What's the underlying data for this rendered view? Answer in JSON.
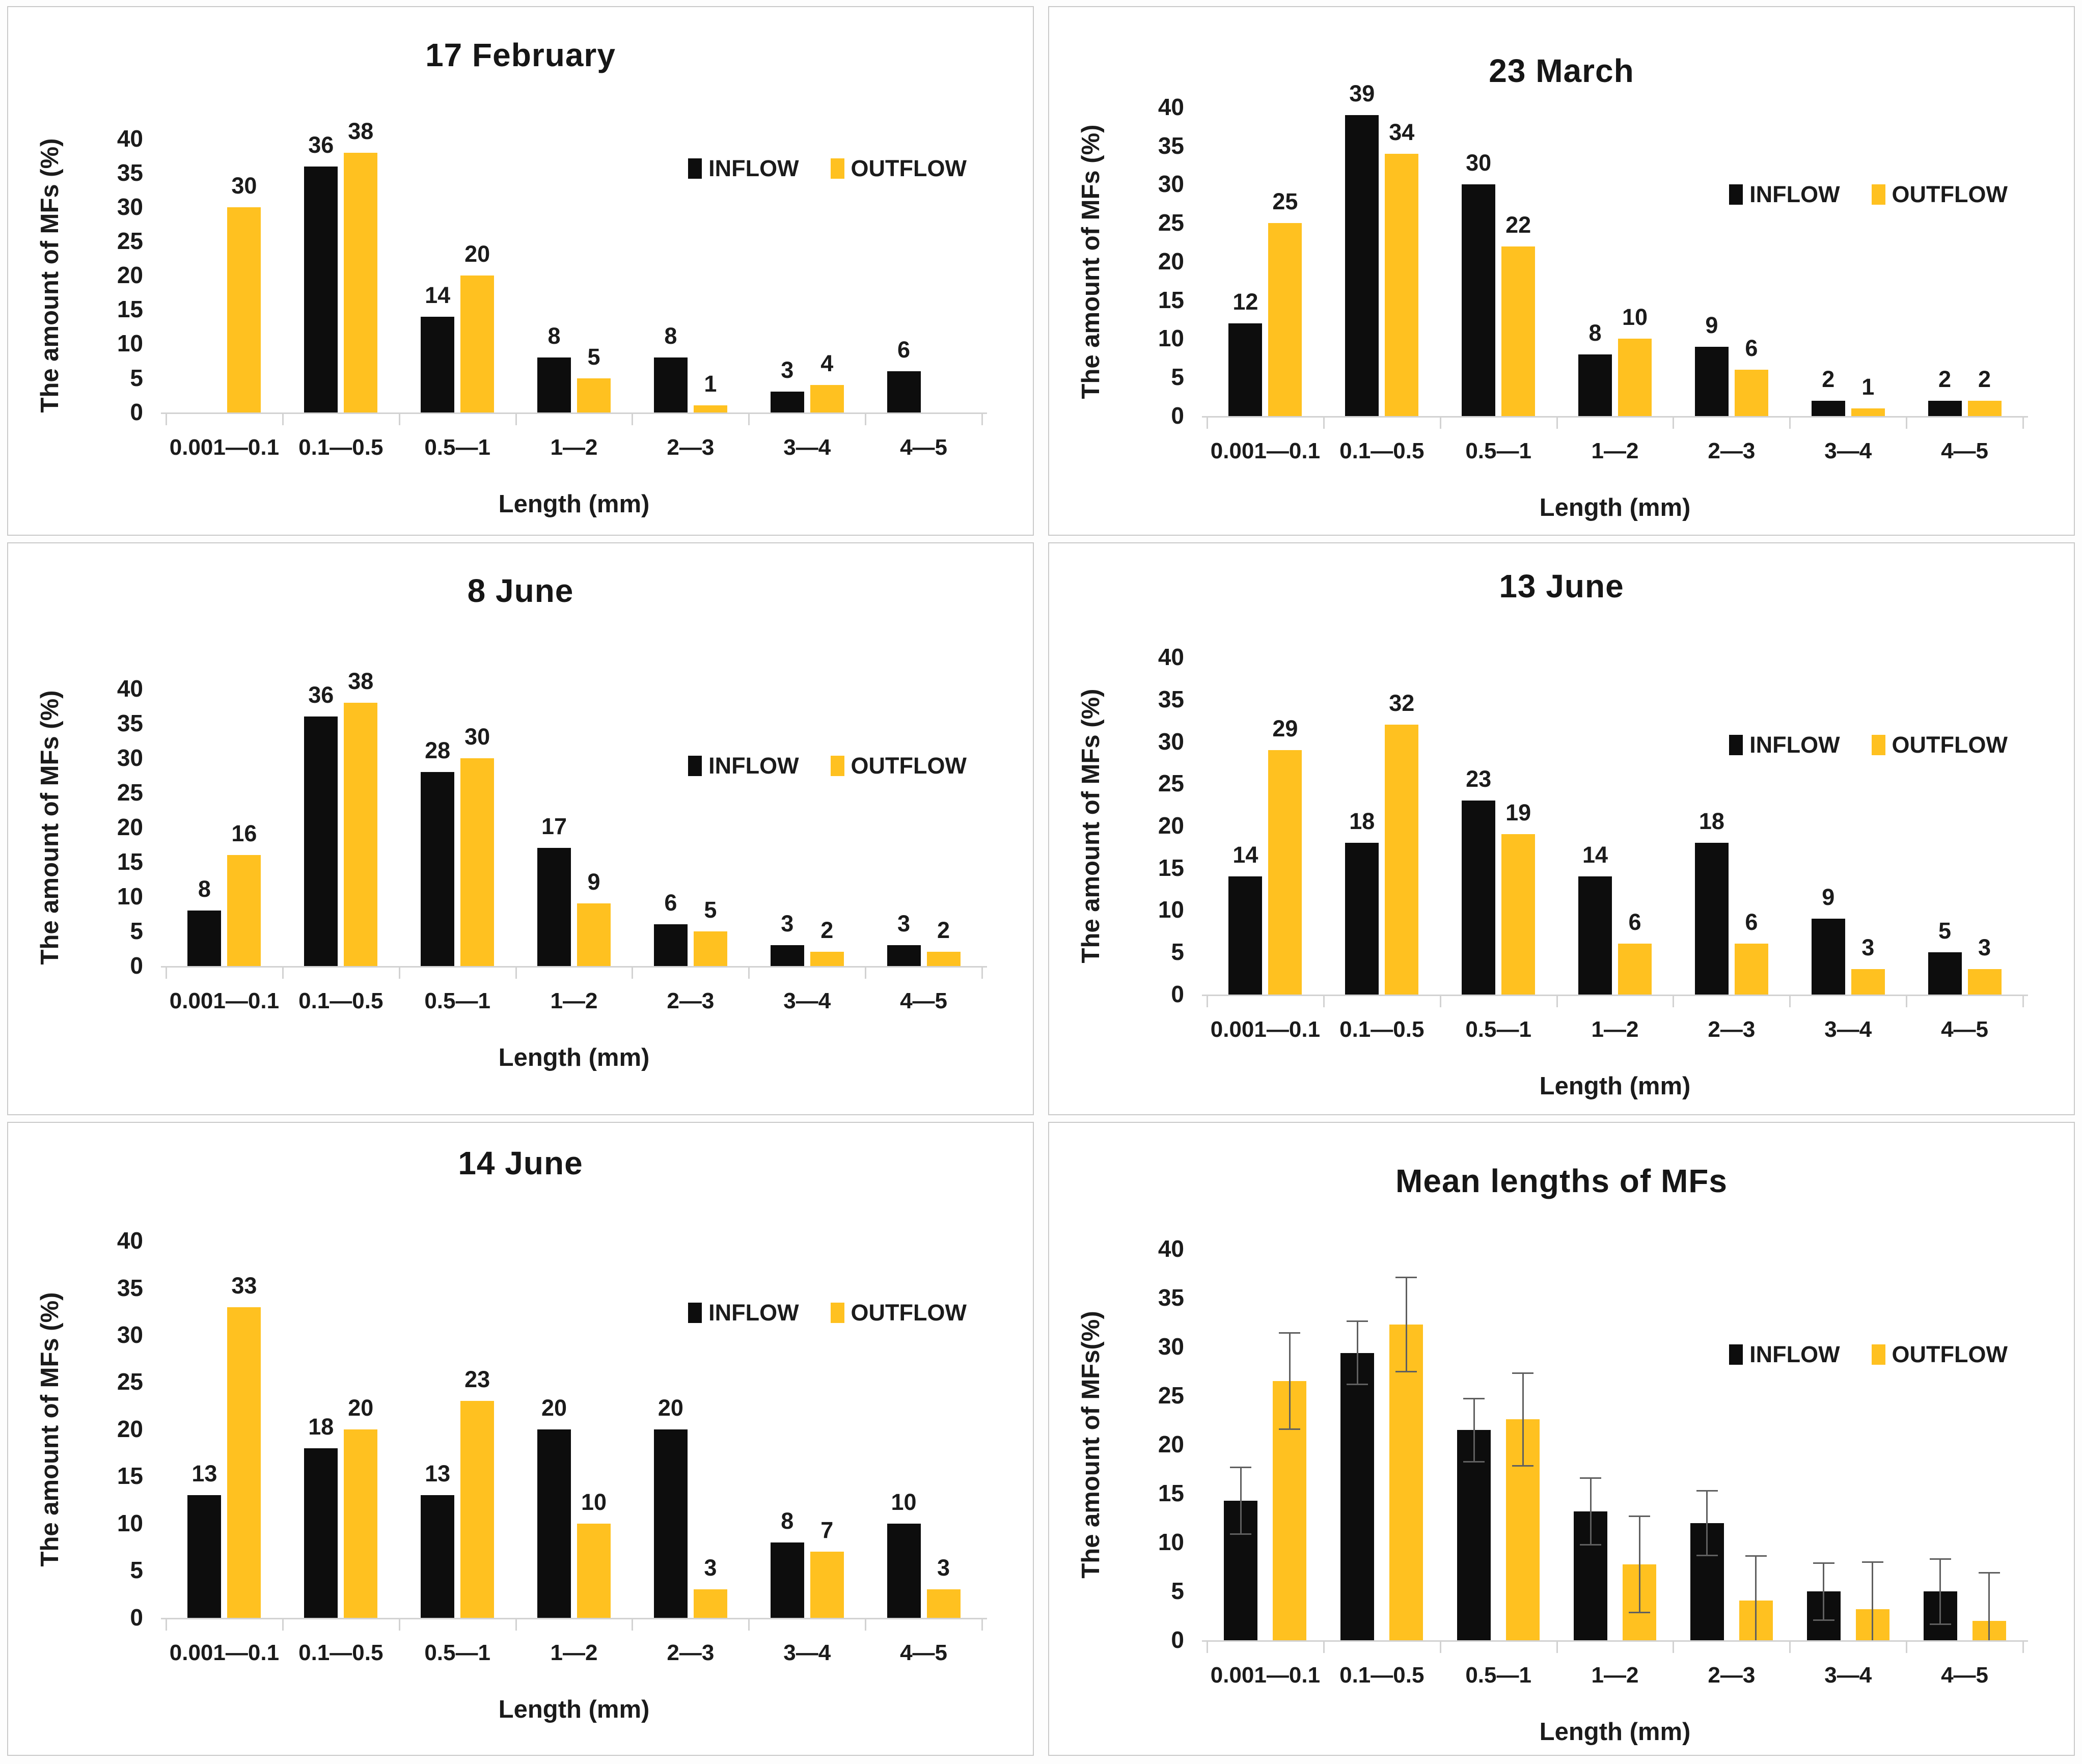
{
  "colors": {
    "inflow": "#0d0d0d",
    "outflow": "#FFC120",
    "error_bar": "#5f5f5f",
    "axis_line": "#d2d2d2",
    "panel_border": "#c9c9c9",
    "text": "#1b1b1b"
  },
  "legend": {
    "inflow_label": "INFLOW",
    "outflow_label": "OUTFLOW",
    "position": "inside-top-right"
  },
  "categories": [
    "0.001—0.1",
    "0.1—0.5",
    "0.5—1",
    "1—2",
    "2—3",
    "3—4",
    "4—5"
  ],
  "axis": {
    "xlabel": "Length (mm)",
    "ylim": [
      0,
      40
    ],
    "yticks": [
      0,
      5,
      10,
      15,
      20,
      25,
      30,
      35,
      40
    ],
    "grid": false
  },
  "chart_data": [
    {
      "type": "bar",
      "title": "17 February",
      "xlabel": "Length (mm)",
      "ylabel": "The amount of MFs (%)",
      "ylim": [
        0,
        40
      ],
      "yticks": [
        0,
        5,
        10,
        15,
        20,
        25,
        30,
        35,
        40
      ],
      "grid": false,
      "data_labels": true,
      "legend_position": "inside-top-right",
      "categories": [
        "0.001—0.1",
        "0.1—0.5",
        "0.5—1",
        "1—2",
        "2—3",
        "3—4",
        "4—5"
      ],
      "series": [
        {
          "name": "INFLOW",
          "values": [
            0,
            36,
            14,
            8,
            8,
            3,
            6
          ]
        },
        {
          "name": "OUTFLOW",
          "values": [
            30,
            38,
            20,
            5,
            1,
            4,
            0
          ]
        }
      ]
    },
    {
      "type": "bar",
      "title": "23 March",
      "xlabel": "Length (mm)",
      "ylabel": "The amount of MFs (%)",
      "ylim": [
        0,
        40
      ],
      "yticks": [
        0,
        5,
        10,
        15,
        20,
        25,
        30,
        35,
        40
      ],
      "grid": false,
      "data_labels": true,
      "legend_position": "inside-top-right",
      "categories": [
        "0.001—0.1",
        "0.1—0.5",
        "0.5—1",
        "1—2",
        "2—3",
        "3—4",
        "4—5"
      ],
      "series": [
        {
          "name": "INFLOW",
          "values": [
            12,
            39,
            30,
            8,
            9,
            2,
            2
          ]
        },
        {
          "name": "OUTFLOW",
          "values": [
            25,
            34,
            22,
            10,
            6,
            1,
            2
          ]
        }
      ]
    },
    {
      "type": "bar",
      "title": "8 June",
      "xlabel": "Length (mm)",
      "ylabel": "The amount of MFs (%)",
      "ylim": [
        0,
        40
      ],
      "yticks": [
        0,
        5,
        10,
        15,
        20,
        25,
        30,
        35,
        40
      ],
      "grid": false,
      "data_labels": true,
      "legend_position": "inside-top-right",
      "categories": [
        "0.001—0.1",
        "0.1—0.5",
        "0.5—1",
        "1—2",
        "2—3",
        "3—4",
        "4—5"
      ],
      "series": [
        {
          "name": "INFLOW",
          "values": [
            8,
            36,
            28,
            17,
            6,
            3,
            3
          ]
        },
        {
          "name": "OUTFLOW",
          "values": [
            16,
            38,
            30,
            9,
            5,
            2,
            2
          ]
        }
      ]
    },
    {
      "type": "bar",
      "title": "13 June",
      "xlabel": "Length (mm)",
      "ylabel": "The amount of MFs (%)",
      "ylim": [
        0,
        40
      ],
      "yticks": [
        0,
        5,
        10,
        15,
        20,
        25,
        30,
        35,
        40
      ],
      "grid": false,
      "data_labels": true,
      "legend_position": "inside-top-right",
      "categories": [
        "0.001—0.1",
        "0.1—0.5",
        "0.5—1",
        "1—2",
        "2—3",
        "3—4",
        "4—5"
      ],
      "series": [
        {
          "name": "INFLOW",
          "values": [
            14,
            18,
            23,
            14,
            18,
            9,
            5
          ]
        },
        {
          "name": "OUTFLOW",
          "values": [
            29,
            32,
            19,
            6,
            6,
            3,
            3
          ]
        }
      ]
    },
    {
      "type": "bar",
      "title": "14 June",
      "xlabel": "Length (mm)",
      "ylabel": "The amount of MFs (%)",
      "ylim": [
        0,
        40
      ],
      "yticks": [
        0,
        5,
        10,
        15,
        20,
        25,
        30,
        35,
        40
      ],
      "grid": false,
      "data_labels": true,
      "legend_position": "inside-top-right",
      "categories": [
        "0.001—0.1",
        "0.1—0.5",
        "0.5—1",
        "1—2",
        "2—3",
        "3—4",
        "4—5"
      ],
      "series": [
        {
          "name": "INFLOW",
          "values": [
            13,
            18,
            13,
            20,
            20,
            8,
            10
          ]
        },
        {
          "name": "OUTFLOW",
          "values": [
            33,
            20,
            23,
            10,
            3,
            7,
            3
          ]
        }
      ]
    },
    {
      "type": "bar",
      "title": "Mean lengths of MFs",
      "xlabel": "Length (mm)",
      "ylabel": "The amount of MFs(%)",
      "ylim": [
        0,
        40
      ],
      "yticks": [
        0,
        5,
        10,
        15,
        20,
        25,
        30,
        35,
        40
      ],
      "grid": false,
      "data_labels": false,
      "error_bars": true,
      "legend_position": "inside-top-right",
      "categories": [
        "0.001—0.1",
        "0.1—0.5",
        "0.5—1",
        "1—2",
        "2—3",
        "3—4",
        "4—5"
      ],
      "series": [
        {
          "name": "INFLOW",
          "values": [
            14.3,
            29.4,
            21.5,
            13.2,
            12,
            5,
            5
          ],
          "errors": [
            3.5,
            3.3,
            3.3,
            3.5,
            3.4,
            3,
            3.4
          ]
        },
        {
          "name": "OUTFLOW",
          "values": [
            26.5,
            32.3,
            22.6,
            7.8,
            4.1,
            3.2,
            2
          ],
          "errors": [
            5,
            4.9,
            4.8,
            5,
            4.6,
            4.9,
            5
          ]
        }
      ]
    }
  ]
}
